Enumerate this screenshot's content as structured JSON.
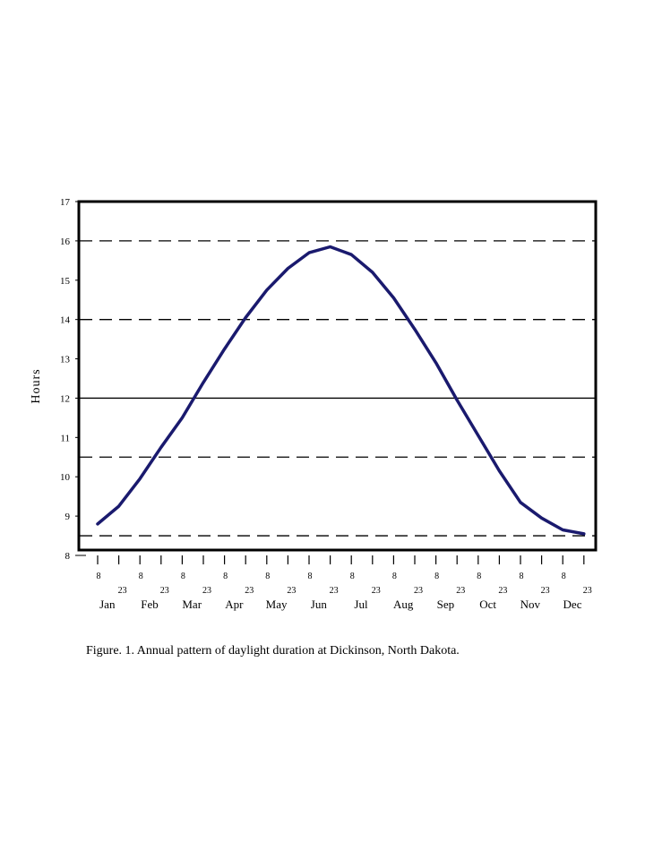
{
  "caption": "Figure. 1.  Annual pattern of daylight duration at Dickinson, North Dakota.",
  "colors": {
    "line": "#1a1a6e",
    "axis": "#000000",
    "gridline": "#000000"
  },
  "chart_data": {
    "type": "line",
    "title": "",
    "xlabel": "",
    "ylabel": "Hours",
    "ylim": [
      8,
      17
    ],
    "yticks": [
      8,
      9,
      10,
      11,
      12,
      13,
      14,
      15,
      16,
      17
    ],
    "month_labels": [
      "Jan",
      "Feb",
      "Mar",
      "Apr",
      "May",
      "Jun",
      "Jul",
      "Aug",
      "Sep",
      "Oct",
      "Nov",
      "Dec"
    ],
    "day_labels": [
      "8",
      "23"
    ],
    "reference_lines": [
      {
        "y": 16,
        "style": "dashed"
      },
      {
        "y": 14,
        "style": "dashed"
      },
      {
        "y": 12,
        "style": "solid"
      },
      {
        "y": 10.5,
        "style": "dashed"
      },
      {
        "y": 8.5,
        "style": "dashed"
      }
    ],
    "series": [
      {
        "x": [
          "Jan 8",
          "Jan 23",
          "Feb 8",
          "Feb 23",
          "Mar 8",
          "Mar 23",
          "Apr 8",
          "Apr 23",
          "May 8",
          "May 23",
          "Jun 8",
          "Jun 23",
          "Jul 8",
          "Jul 23",
          "Aug 8",
          "Aug 23",
          "Sep 8",
          "Sep 23",
          "Oct 8",
          "Oct 23",
          "Nov 8",
          "Nov 23",
          "Dec 8",
          "Dec 23"
        ],
        "values": [
          8.8,
          9.25,
          9.95,
          10.75,
          11.5,
          12.4,
          13.25,
          14.05,
          14.75,
          15.3,
          15.7,
          15.85,
          15.65,
          15.2,
          14.55,
          13.75,
          12.9,
          11.95,
          11.05,
          10.15,
          9.35,
          8.95,
          8.65,
          8.55
        ]
      }
    ]
  }
}
